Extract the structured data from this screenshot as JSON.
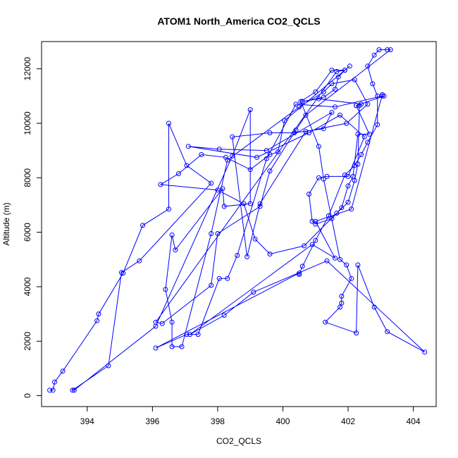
{
  "chart_data": {
    "type": "line",
    "title": "ATOM1 North_America CO2_QCLS",
    "xlabel": "CO2_QCLS",
    "ylabel": "Altitude (m)",
    "xlim": [
      392.6,
      404.7
    ],
    "ylim": [
      -400,
      13000
    ],
    "xticks": [
      394,
      396,
      398,
      400,
      402,
      404
    ],
    "yticks": [
      0,
      2000,
      4000,
      6000,
      8000,
      10000,
      12000
    ],
    "grid": false,
    "legend": "none",
    "markers": "open circles",
    "color": "#0000ff",
    "series": [
      {
        "points": [
          [
            392.85,
            200
          ],
          [
            392.95,
            200
          ],
          [
            393.0,
            500
          ],
          [
            393.25,
            900
          ],
          [
            394.3,
            2750
          ],
          [
            394.35,
            3000
          ],
          [
            395.1,
            4500
          ],
          [
            395.7,
            6250
          ],
          [
            396.5,
            6850
          ],
          [
            396.5,
            10000
          ],
          [
            397.05,
            8450
          ],
          [
            397.8,
            7800
          ],
          [
            395.6,
            4950
          ],
          [
            395.05,
            4520
          ],
          [
            394.65,
            1100
          ],
          [
            393.55,
            200
          ],
          [
            393.6,
            200
          ],
          [
            396.1,
            2550
          ],
          [
            398.45,
            8800
          ],
          [
            399.0,
            10500
          ],
          [
            399.0,
            7050
          ],
          [
            398.2,
            6950
          ],
          [
            398.15,
            7600
          ],
          [
            396.7,
            5350
          ],
          [
            396.6,
            5900
          ],
          [
            396.4,
            3900
          ],
          [
            396.6,
            2700
          ],
          [
            396.6,
            1800
          ],
          [
            396.9,
            1800
          ],
          [
            397.8,
            5950
          ],
          [
            398.3,
            8650
          ],
          [
            400.5,
            10600
          ],
          [
            401.25,
            11150
          ],
          [
            401.5,
            11450
          ],
          [
            402.2,
            11600
          ],
          [
            402.6,
            10700
          ],
          [
            401.95,
            10000
          ],
          [
            400.7,
            9700
          ],
          [
            399.3,
            7050
          ],
          [
            398.9,
            5100
          ],
          [
            398.45,
            9500
          ],
          [
            399.6,
            9650
          ],
          [
            400.35,
            9650
          ],
          [
            401.25,
            9800
          ],
          [
            401.5,
            10400
          ],
          [
            399.5,
            9000
          ],
          [
            398.05,
            9050
          ],
          [
            397.1,
            9150
          ],
          [
            399.2,
            8750
          ],
          [
            400.8,
            9650
          ],
          [
            401.75,
            10300
          ],
          [
            402.5,
            9500
          ],
          [
            402.0,
            8050
          ],
          [
            401.35,
            8050
          ],
          [
            401.1,
            8000
          ],
          [
            400.8,
            7400
          ],
          [
            400.9,
            6400
          ],
          [
            401.0,
            6300
          ],
          [
            401.5,
            6500
          ],
          [
            401.8,
            6900
          ],
          [
            402.0,
            7700
          ],
          [
            402.15,
            8050
          ],
          [
            402.3,
            9600
          ],
          [
            402.65,
            9600
          ],
          [
            402.25,
            10650
          ],
          [
            402.25,
            10650
          ],
          [
            403.1,
            11000
          ],
          [
            403.05,
            11000
          ],
          [
            401.6,
            10600
          ],
          [
            400.4,
            10700
          ],
          [
            399.5,
            8700
          ],
          [
            398.6,
            5150
          ],
          [
            398.3,
            4300
          ],
          [
            398.05,
            4300
          ],
          [
            397.4,
            2250
          ],
          [
            397.05,
            2250
          ],
          [
            396.1,
            1750
          ],
          [
            400.5,
            4500
          ],
          [
            400.5,
            4450
          ],
          [
            400.6,
            4750
          ],
          [
            401.0,
            5700
          ],
          [
            401.4,
            6600
          ],
          [
            401.9,
            8100
          ],
          [
            402.2,
            8450
          ],
          [
            402.4,
            8850
          ],
          [
            402.6,
            9300
          ],
          [
            402.9,
            9950
          ],
          [
            402.9,
            11000
          ],
          [
            402.75,
            11450
          ],
          [
            402.6,
            12100
          ],
          [
            402.8,
            12500
          ],
          [
            402.95,
            12700
          ],
          [
            403.2,
            12700
          ],
          [
            403.3,
            12700
          ],
          [
            400.7,
            10300
          ],
          [
            400.4,
            9750
          ],
          [
            399.6,
            8250
          ],
          [
            399.3,
            6950
          ],
          [
            398.0,
            5950
          ],
          [
            397.8,
            4050
          ],
          [
            396.3,
            2650
          ],
          [
            396.1,
            2700
          ],
          [
            401.65,
            11900
          ],
          [
            401.9,
            11950
          ],
          [
            402.05,
            12100
          ],
          [
            400.05,
            10100
          ],
          [
            399.85,
            8950
          ],
          [
            399.6,
            8850
          ],
          [
            399.0,
            8300
          ],
          [
            398.25,
            8750
          ],
          [
            397.5,
            8850
          ],
          [
            396.8,
            8150
          ],
          [
            396.25,
            7750
          ],
          [
            398.0,
            7550
          ],
          [
            398.8,
            7050
          ],
          [
            399.15,
            5750
          ],
          [
            399.6,
            5200
          ],
          [
            400.65,
            5500
          ],
          [
            401.65,
            6700
          ],
          [
            402.0,
            7100
          ],
          [
            402.2,
            7900
          ],
          [
            402.3,
            8500
          ],
          [
            402.35,
            10650
          ],
          [
            402.4,
            10700
          ],
          [
            401.1,
            10900
          ],
          [
            400.6,
            10800
          ],
          [
            401.25,
            10950
          ],
          [
            401.6,
            11250
          ],
          [
            401.7,
            11700
          ],
          [
            401.9,
            11950
          ],
          [
            401.5,
            11950
          ],
          [
            401.0,
            11150
          ],
          [
            400.55,
            10800
          ],
          [
            401.1,
            9150
          ],
          [
            401.25,
            7950
          ],
          [
            401.75,
            5000
          ],
          [
            401.95,
            4800
          ],
          [
            402.1,
            4300
          ],
          [
            401.8,
            3650
          ],
          [
            401.8,
            3400
          ],
          [
            401.75,
            3250
          ],
          [
            401.3,
            2700
          ],
          [
            402.25,
            2300
          ],
          [
            402.3,
            4800
          ],
          [
            402.8,
            3250
          ],
          [
            403.2,
            2350
          ],
          [
            404.35,
            1600
          ],
          [
            401.35,
            4950
          ],
          [
            399.1,
            3800
          ],
          [
            398.2,
            2950
          ],
          [
            397.15,
            2250
          ],
          [
            400.9,
            5550
          ],
          [
            401.6,
            5050
          ],
          [
            401.0,
            6400
          ],
          [
            402.1,
            6850
          ],
          [
            403.05,
            11050
          ]
        ]
      }
    ]
  }
}
